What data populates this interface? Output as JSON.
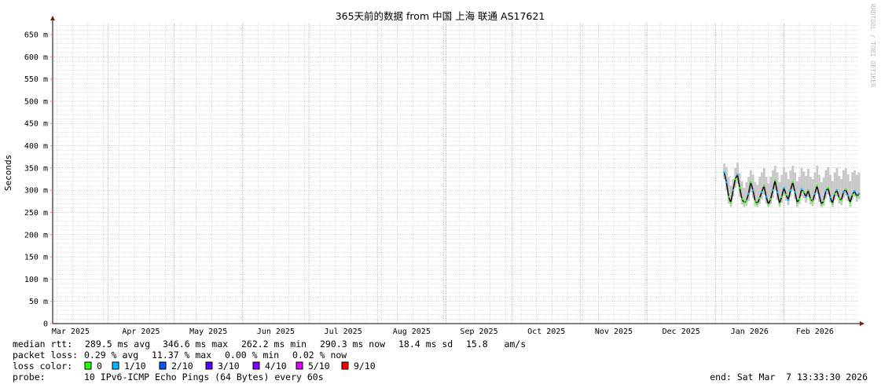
{
  "chart_data": {
    "type": "line",
    "title": "365天前的数据 from  中国 上海 联通 AS17621",
    "ylabel": "Seconds",
    "watermark": "RRDTOOL / TOBI OETIKER",
    "ylim": [
      0,
      680
    ],
    "yticks": [
      0,
      50,
      100,
      150,
      200,
      250,
      300,
      350,
      400,
      450,
      500,
      550,
      600,
      650
    ],
    "ytick_labels": [
      "0",
      "50 m",
      "100 m",
      "150 m",
      "200 m",
      "250 m",
      "300 m",
      "350 m",
      "400 m",
      "450 m",
      "500 m",
      "550 m",
      "600 m",
      "650 m"
    ],
    "xrange": [
      "2025-03-07",
      "2026-03-07"
    ],
    "xtick_labels": [
      "Mar 2025",
      "Apr 2025",
      "May 2025",
      "Jun 2025",
      "Jul 2025",
      "Aug 2025",
      "Sep 2025",
      "Oct 2025",
      "Nov 2025",
      "Dec 2025",
      "Jan 2026",
      "Feb 2026"
    ],
    "grid": true,
    "series_start": "2026-01-05",
    "series_step_days": 1,
    "median_ms": [
      340,
      318,
      285,
      272,
      300,
      325,
      335,
      305,
      280,
      272,
      276,
      292,
      318,
      300,
      275,
      270,
      282,
      296,
      310,
      285,
      268,
      280,
      300,
      322,
      295,
      270,
      285,
      305,
      290,
      278,
      300,
      318,
      296,
      272,
      280,
      302,
      296,
      285,
      300,
      280,
      275,
      292,
      310,
      288,
      268,
      276,
      298,
      305,
      284,
      270,
      292,
      300,
      282,
      277,
      296,
      302,
      288,
      272,
      290,
      298,
      286,
      292
    ],
    "smoke_max_ms": [
      360,
      352,
      330,
      310,
      325,
      350,
      362,
      338,
      320,
      305,
      318,
      330,
      345,
      335,
      318,
      312,
      330,
      340,
      350,
      330,
      315,
      330,
      345,
      355,
      340,
      318,
      335,
      352,
      340,
      325,
      345,
      355,
      340,
      320,
      330,
      350,
      342,
      332,
      348,
      330,
      325,
      340,
      355,
      335,
      318,
      328,
      345,
      352,
      335,
      320,
      340,
      350,
      332,
      325,
      345,
      350,
      336,
      320,
      340,
      345,
      335,
      340
    ],
    "smoke_min_ms": [
      325,
      300,
      270,
      262,
      285,
      305,
      315,
      285,
      268,
      262,
      265,
      275,
      295,
      282,
      264,
      262,
      270,
      280,
      290,
      270,
      262,
      268,
      282,
      300,
      278,
      262,
      272,
      288,
      276,
      266,
      285,
      298,
      280,
      262,
      268,
      286,
      282,
      272,
      285,
      268,
      264,
      278,
      292,
      274,
      262,
      265,
      282,
      290,
      272,
      262,
      278,
      286,
      270,
      266,
      282,
      288,
      275,
      262,
      278,
      285,
      274,
      280
    ],
    "loss_index": [
      1,
      1,
      0,
      0,
      1,
      0,
      1,
      0,
      0,
      0,
      0,
      1,
      0,
      1,
      0,
      0,
      0,
      1,
      0,
      1,
      0,
      0,
      1,
      0,
      1,
      0,
      0,
      1,
      0,
      1,
      1,
      0,
      1,
      0,
      0,
      1,
      0,
      1,
      0,
      0,
      0,
      1,
      0,
      2,
      0,
      0,
      1,
      0,
      1,
      0,
      0,
      1,
      0,
      0,
      1,
      0,
      1,
      0,
      0,
      1,
      0,
      1
    ]
  },
  "legend": {
    "median_rtt": {
      "label": "median rtt:",
      "avg": "289.5 ms avg",
      "max": "346.6 ms max",
      "min": "262.2 ms min",
      "now": "290.3 ms now",
      "sd": "18.4 ms sd",
      "ams": "15.8   am/s"
    },
    "packet_loss": {
      "label": "packet loss:",
      "avg": "0.29 % avg",
      "max": "11.37 % max",
      "min": "0.00 % min",
      "now": "0.02 % now"
    },
    "loss_color": {
      "label": "loss color:",
      "items": [
        {
          "label": "0",
          "color": "#26ff00"
        },
        {
          "label": "1/10",
          "color": "#00b8ff"
        },
        {
          "label": "2/10",
          "color": "#0059ff"
        },
        {
          "label": "3/10",
          "color": "#5e00ff"
        },
        {
          "label": "4/10",
          "color": "#7e00ff"
        },
        {
          "label": "5/10",
          "color": "#dd00ff"
        },
        {
          "label": "9/10",
          "color": "#ff0000"
        }
      ]
    },
    "probe": {
      "label": "probe:",
      "value": "10 IPv6-ICMP Echo Pings (64 Bytes) every 60s"
    },
    "end": "end: Sat Mar  7 13:33:30 2026"
  }
}
